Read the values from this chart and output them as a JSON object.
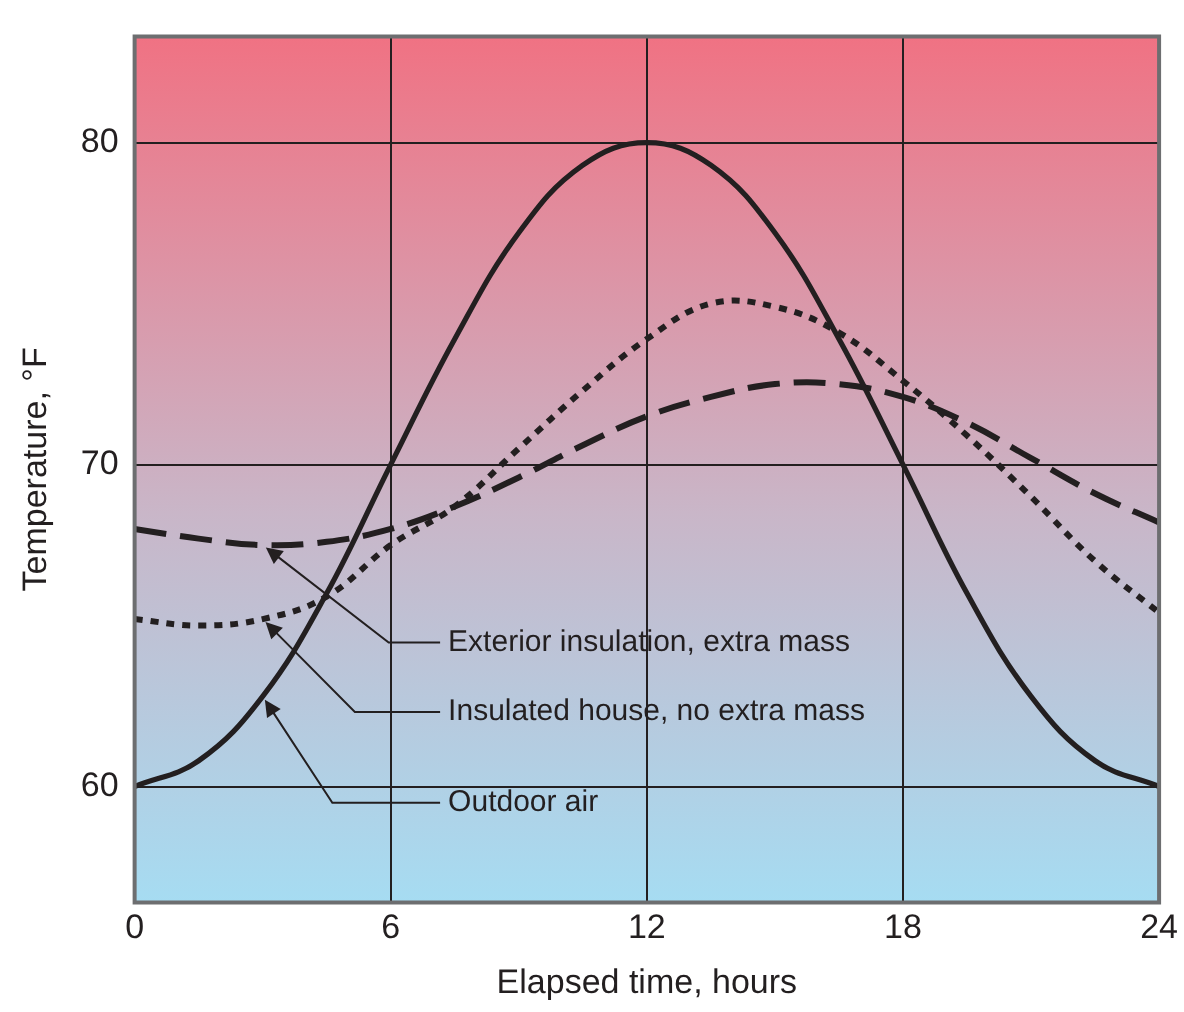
{
  "chart_data": {
    "type": "line",
    "xlabel": "Elapsed time, hours",
    "ylabel": "Temperature, °F",
    "x": [
      0,
      1.5,
      3,
      4.5,
      6,
      7.5,
      9,
      10.5,
      12,
      13.5,
      15,
      16.5,
      18,
      19.5,
      21,
      22.5,
      24
    ],
    "series": [
      {
        "name": "Outdoor air",
        "color": "#231f20",
        "line_style": "solid",
        "values": [
          60,
          60.8,
          62.8,
          66,
          70,
          73.9,
          77.2,
          79.3,
          80,
          79.3,
          77.2,
          73.9,
          70,
          66,
          62.8,
          60.8,
          60
        ]
      },
      {
        "name": "Insulated house, no extra mass",
        "color": "#231f20",
        "line_style": "dotted",
        "values": [
          65.2,
          65.0,
          65.2,
          65.9,
          67.5,
          68.7,
          70.5,
          72.3,
          73.9,
          75,
          74.9,
          74.1,
          72.6,
          70.9,
          69,
          67.0,
          65.4
        ]
      },
      {
        "name": "Exterior insulation, extra mass",
        "color": "#231f20",
        "line_style": "dashed",
        "values": [
          68.0,
          67.7,
          67.5,
          67.6,
          68.0,
          68.7,
          69.6,
          70.6,
          71.5,
          72.1,
          72.5,
          72.5,
          72.1,
          71.3,
          70.2,
          69.1,
          68.2
        ]
      }
    ],
    "xlim": [
      0,
      24
    ],
    "xticks": [
      0,
      6,
      12,
      18,
      24
    ],
    "ylim": [
      56.4,
      83.3
    ],
    "yticks": [
      60,
      70,
      80
    ],
    "grid": true,
    "legend": false,
    "marker": "none"
  }
}
